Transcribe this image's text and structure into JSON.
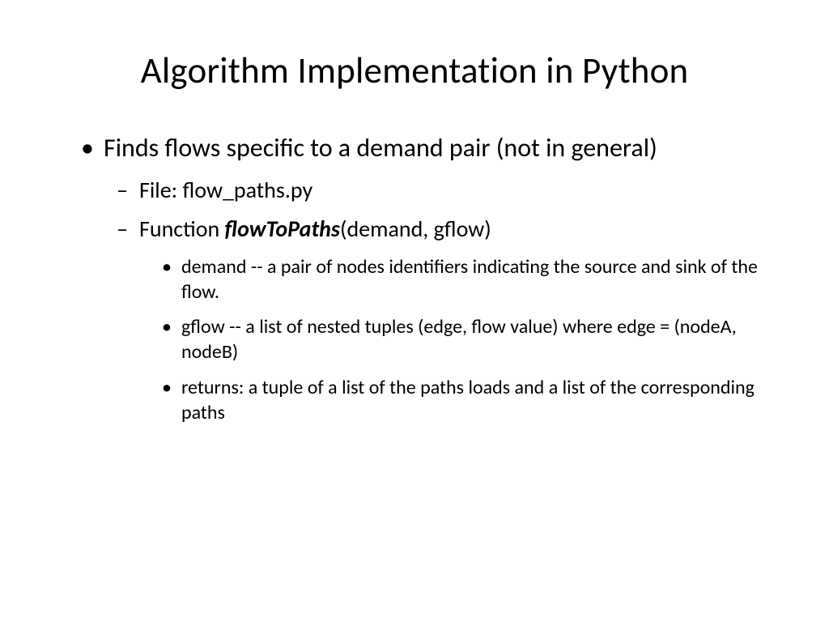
{
  "title": "Algorithm Implementation in Python",
  "bullets": {
    "l1_0": "Finds flows specific to a demand pair (not in general)",
    "l2_0": "File: flow_paths.py",
    "l2_1_prefix": "Function ",
    "l2_1_fn": "flowToPaths",
    "l2_1_suffix": "(demand, gflow)",
    "l3_0": " demand  -- a pair of nodes identifiers indicating the source and sink of the flow.",
    "l3_1": " gflow -- a list of nested tuples (edge, flow value) where edge = (nodeA, nodeB)",
    "l3_2": "returns: a tuple of a list of the paths loads and a list of the corresponding paths"
  },
  "style": {
    "background_color": "#ffffff",
    "text_color": "#000000",
    "font_family": "Calibri",
    "title_fontsize": 45,
    "l1_fontsize": 32,
    "l2_fontsize": 28,
    "l3_fontsize": 24,
    "l1_marker": "•",
    "l2_marker": "–",
    "l3_marker": "•",
    "fn_weight": 700,
    "fn_style": "italic"
  }
}
